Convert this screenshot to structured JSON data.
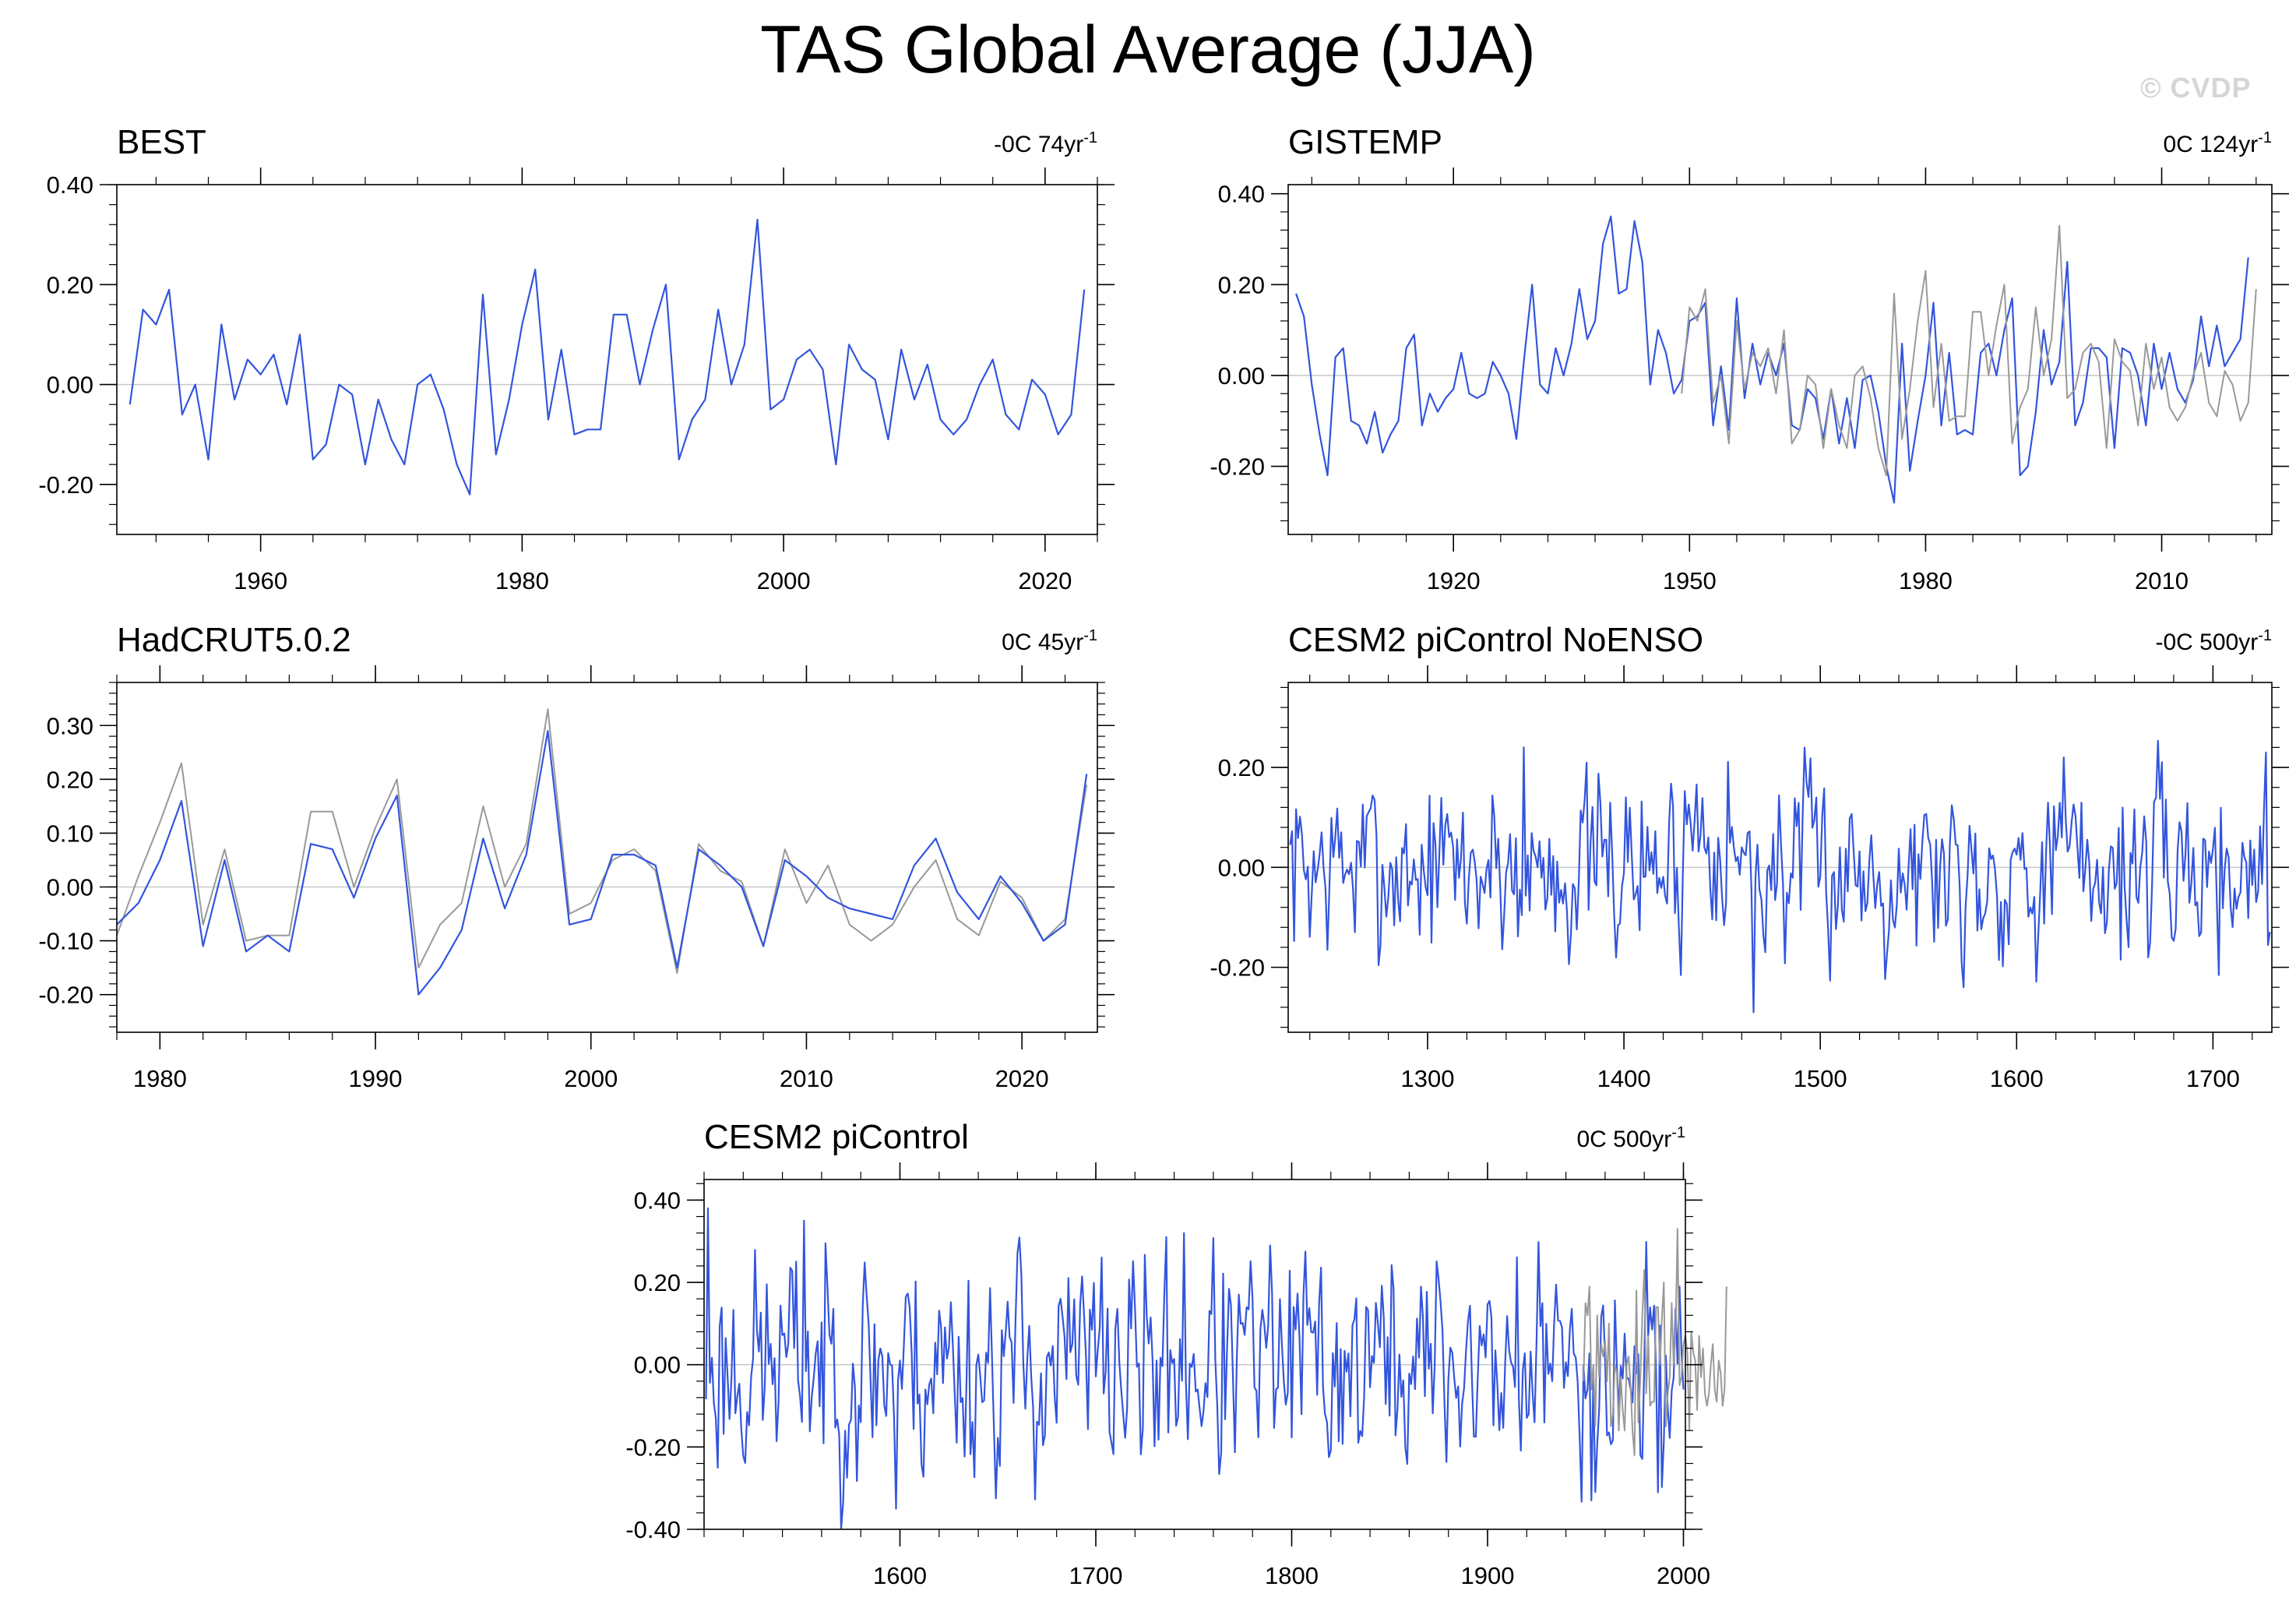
{
  "figure": {
    "title": "TAS Global Average (JJA)",
    "watermark": "© CVDP"
  },
  "chart_data": [
    {
      "type": "line",
      "name": "BEST",
      "title": "BEST",
      "rate_label": "-0C 74yr",
      "rate_exp": "-1",
      "xlim": [
        1949,
        2024
      ],
      "ylim": [
        -0.3,
        0.4
      ],
      "xticks": [
        1960,
        1980,
        2000,
        2020
      ],
      "yticks": [
        -0.2,
        0.0,
        0.2,
        0.4
      ],
      "ytick_labels": [
        "-0.20",
        "0.00",
        "0.20",
        "0.40"
      ],
      "series": [
        {
          "name": "BEST",
          "color": "#3355dd",
          "x0": 1950,
          "values": [
            -0.04,
            0.15,
            0.12,
            0.19,
            -0.06,
            0.0,
            -0.15,
            0.12,
            -0.03,
            0.05,
            0.02,
            0.06,
            -0.04,
            0.1,
            -0.15,
            -0.12,
            0.0,
            -0.02,
            -0.16,
            -0.03,
            -0.11,
            -0.16,
            0.0,
            0.02,
            -0.05,
            -0.16,
            -0.22,
            0.18,
            -0.14,
            -0.03,
            0.12,
            0.23,
            -0.07,
            0.07,
            -0.1,
            -0.09,
            -0.09,
            0.14,
            0.14,
            0.0,
            0.11,
            0.2,
            -0.15,
            -0.07,
            -0.03,
            0.15,
            0.0,
            0.08,
            0.33,
            -0.05,
            -0.03,
            0.05,
            0.07,
            0.03,
            -0.16,
            0.08,
            0.03,
            0.01,
            -0.11,
            0.07,
            -0.03,
            0.04,
            -0.07,
            -0.1,
            -0.07,
            0.0,
            0.05,
            -0.06,
            -0.09,
            0.01,
            -0.02,
            -0.1,
            -0.06,
            0.19
          ]
        }
      ]
    },
    {
      "type": "line",
      "name": "GISTEMP",
      "title": "GISTEMP",
      "rate_label": "0C 124yr",
      "rate_exp": "-1",
      "xlim": [
        1899,
        2024
      ],
      "ylim": [
        -0.35,
        0.42
      ],
      "xticks": [
        1920,
        1950,
        1980,
        2010
      ],
      "yticks": [
        -0.2,
        0.0,
        0.2,
        0.4
      ],
      "ytick_labels": [
        "-0.20",
        "0.00",
        "0.20",
        "0.40"
      ],
      "series": [
        {
          "name": "GISTEMP",
          "color": "#3355dd",
          "x0": 1900,
          "values": [
            0.18,
            0.13,
            -0.02,
            -0.13,
            -0.22,
            0.04,
            0.06,
            -0.1,
            -0.11,
            -0.15,
            -0.08,
            -0.17,
            -0.13,
            -0.1,
            0.06,
            0.09,
            -0.11,
            -0.04,
            -0.08,
            -0.05,
            -0.03,
            0.05,
            -0.04,
            -0.05,
            -0.04,
            0.03,
            0.0,
            -0.04,
            -0.14,
            0.04,
            0.2,
            -0.02,
            -0.04,
            0.06,
            0.0,
            0.07,
            0.19,
            0.08,
            0.12,
            0.29,
            0.35,
            0.18,
            0.19,
            0.34,
            0.25,
            -0.02,
            0.1,
            0.05,
            -0.04,
            -0.01,
            0.12,
            0.13,
            0.16,
            -0.11,
            0.02,
            -0.12,
            0.17,
            -0.05,
            0.07,
            -0.02,
            0.05,
            0.0,
            0.07,
            -0.11,
            -0.12,
            -0.03,
            -0.05,
            -0.14,
            -0.03,
            -0.15,
            -0.05,
            -0.16,
            -0.01,
            0.0,
            -0.08,
            -0.2,
            -0.28,
            0.07,
            -0.21,
            -0.1,
            0.0,
            0.16,
            -0.11,
            0.05,
            -0.13,
            -0.12,
            -0.13,
            0.05,
            0.07,
            0.0,
            0.1,
            0.17,
            -0.22,
            -0.2,
            -0.08,
            0.1,
            -0.02,
            0.03,
            0.25,
            -0.11,
            -0.06,
            0.06,
            0.06,
            0.04,
            -0.16,
            0.06,
            0.05,
            0.0,
            -0.11,
            0.07,
            -0.03,
            0.05,
            -0.03,
            -0.06,
            -0.01,
            0.13,
            0.02,
            0.11,
            0.02,
            0.05,
            0.08,
            0.26
          ]
        },
        {
          "name": "reference",
          "color": "#999999",
          "x0": 1949,
          "values": [
            -0.04,
            0.15,
            0.12,
            0.19,
            -0.06,
            0.0,
            -0.15,
            0.12,
            -0.03,
            0.05,
            0.02,
            0.06,
            -0.04,
            0.1,
            -0.15,
            -0.12,
            0.0,
            -0.02,
            -0.16,
            -0.03,
            -0.11,
            -0.16,
            0.0,
            0.02,
            -0.05,
            -0.16,
            -0.22,
            0.18,
            -0.14,
            -0.03,
            0.12,
            0.23,
            -0.07,
            0.07,
            -0.1,
            -0.09,
            -0.09,
            0.14,
            0.14,
            0.0,
            0.11,
            0.2,
            -0.15,
            -0.07,
            -0.03,
            0.15,
            0.0,
            0.08,
            0.33,
            -0.05,
            -0.03,
            0.05,
            0.07,
            0.03,
            -0.16,
            0.08,
            0.03,
            0.01,
            -0.11,
            0.07,
            -0.03,
            0.04,
            -0.07,
            -0.1,
            -0.07,
            0.0,
            0.05,
            -0.06,
            -0.09,
            0.01,
            -0.02,
            -0.1,
            -0.06,
            0.19
          ]
        }
      ]
    },
    {
      "type": "line",
      "name": "HadCRUT5.0.2",
      "title": "HadCRUT5.0.2",
      "rate_label": "0C 45yr",
      "rate_exp": "-1",
      "xlim": [
        1978,
        2023.5
      ],
      "ylim": [
        -0.27,
        0.38
      ],
      "xticks": [
        1980,
        1990,
        2000,
        2010,
        2020
      ],
      "yticks": [
        -0.2,
        -0.1,
        0.0,
        0.1,
        0.2,
        0.3
      ],
      "ytick_labels": [
        "-0.20",
        "-0.10",
        "0.00",
        "0.10",
        "0.20",
        "0.30"
      ],
      "series": [
        {
          "name": "reference",
          "color": "#999999",
          "x0": 1978,
          "values": [
            -0.09,
            0.02,
            0.12,
            0.23,
            -0.07,
            0.07,
            -0.1,
            -0.09,
            -0.09,
            0.14,
            0.14,
            0.0,
            0.11,
            0.2,
            -0.15,
            -0.07,
            -0.03,
            0.15,
            0.0,
            0.08,
            0.33,
            -0.05,
            -0.03,
            0.05,
            0.07,
            0.03,
            -0.16,
            0.08,
            0.03,
            0.01,
            -0.11,
            0.07,
            -0.03,
            0.04,
            -0.07,
            -0.1,
            -0.07,
            0.0,
            0.05,
            -0.06,
            -0.09,
            0.01,
            -0.02,
            -0.1,
            -0.06,
            0.19
          ]
        },
        {
          "name": "HadCRUT5.0.2",
          "color": "#3355dd",
          "x0": 1978,
          "values": [
            -0.07,
            -0.03,
            0.05,
            0.16,
            -0.11,
            0.05,
            -0.12,
            -0.09,
            -0.12,
            0.08,
            0.07,
            -0.02,
            0.09,
            0.17,
            -0.2,
            -0.15,
            -0.08,
            0.09,
            -0.04,
            0.06,
            0.29,
            -0.07,
            -0.06,
            0.06,
            0.06,
            0.04,
            -0.15,
            0.07,
            0.04,
            0.0,
            -0.11,
            0.05,
            0.02,
            -0.02,
            -0.04,
            -0.05,
            -0.06,
            0.04,
            0.09,
            -0.01,
            -0.06,
            0.02,
            -0.03,
            -0.1,
            -0.07,
            0.21
          ]
        }
      ]
    },
    {
      "type": "line",
      "name": "CESM2 piControl NoENSO",
      "title": "CESM2 piControl NoENSO",
      "rate_label": "-0C 500yr",
      "rate_exp": "-1",
      "xlim": [
        1229,
        1730
      ],
      "ylim": [
        -0.33,
        0.37
      ],
      "xticks": [
        1300,
        1400,
        1500,
        1600,
        1700
      ],
      "yticks": [
        -0.2,
        0.0,
        0.2
      ],
      "ytick_labels": [
        "-0.20",
        "0.00",
        "0.20"
      ],
      "series": [
        {
          "name": "CESM2 piControl NoENSO",
          "color": "#3355dd",
          "x0": 1230,
          "step": 1,
          "n": 500,
          "seed": 7,
          "amp": 0.085,
          "bias": 0.0,
          "peaks": [
            [
              1349,
              0.24
            ],
            [
              1466,
              -0.29
            ],
            [
              1573,
              -0.24
            ],
            [
              1624,
              0.22
            ],
            [
              1667,
              -0.18
            ],
            [
              1727,
              0.23
            ]
          ],
          "bumps": [
            [
              1430,
              1455,
              0.09
            ]
          ]
        }
      ]
    },
    {
      "type": "line",
      "name": "CESM2 piControl",
      "title": "CESM2 piControl",
      "rate_label": "0C 500yr",
      "rate_exp": "-1",
      "xlim": [
        1500,
        2001
      ],
      "ylim": [
        -0.4,
        0.45
      ],
      "xticks": [
        1600,
        1700,
        1800,
        1900,
        2000
      ],
      "yticks": [
        -0.4,
        -0.2,
        0.0,
        0.2,
        0.4
      ],
      "ytick_labels": [
        "-0.40",
        "-0.20",
        "0.00",
        "0.20",
        "0.40"
      ],
      "series": [
        {
          "name": "CESM2 piControl",
          "color": "#3355dd",
          "x0": 1501,
          "step": 1,
          "n": 500,
          "seed": 23,
          "amp": 0.13,
          "bias": 0.0,
          "peaks": [
            [
              1502,
              0.38
            ],
            [
              1551,
              0.35
            ],
            [
              1598,
              -0.35
            ],
            [
              1745,
              0.32
            ],
            [
              1953,
              -0.33
            ],
            [
              1987,
              -0.31
            ]
          ],
          "bumps": []
        },
        {
          "name": "reference",
          "color": "#999999",
          "x0": 1949,
          "values": [
            -0.04,
            0.15,
            0.12,
            0.19,
            -0.06,
            0.0,
            -0.15,
            0.12,
            -0.03,
            0.05,
            0.02,
            0.06,
            -0.04,
            0.1,
            -0.15,
            -0.12,
            0.0,
            -0.02,
            -0.16,
            -0.03,
            -0.11,
            -0.16,
            0.0,
            0.02,
            -0.05,
            -0.16,
            -0.22,
            0.18,
            -0.14,
            -0.03,
            0.12,
            0.23,
            -0.07,
            0.07,
            -0.1,
            -0.09,
            -0.09,
            0.14,
            0.14,
            0.0,
            0.11,
            0.2,
            -0.15,
            -0.07,
            -0.03,
            0.15,
            0.0,
            0.08,
            0.33,
            -0.05,
            -0.03,
            0.05,
            0.07,
            0.03,
            -0.16,
            0.08,
            0.03,
            0.01,
            -0.11,
            0.07,
            -0.03,
            0.04,
            -0.07,
            -0.1,
            -0.07,
            0.0,
            0.05,
            -0.06,
            -0.09,
            0.01,
            -0.02,
            -0.1,
            -0.06,
            0.19
          ]
        }
      ]
    }
  ]
}
